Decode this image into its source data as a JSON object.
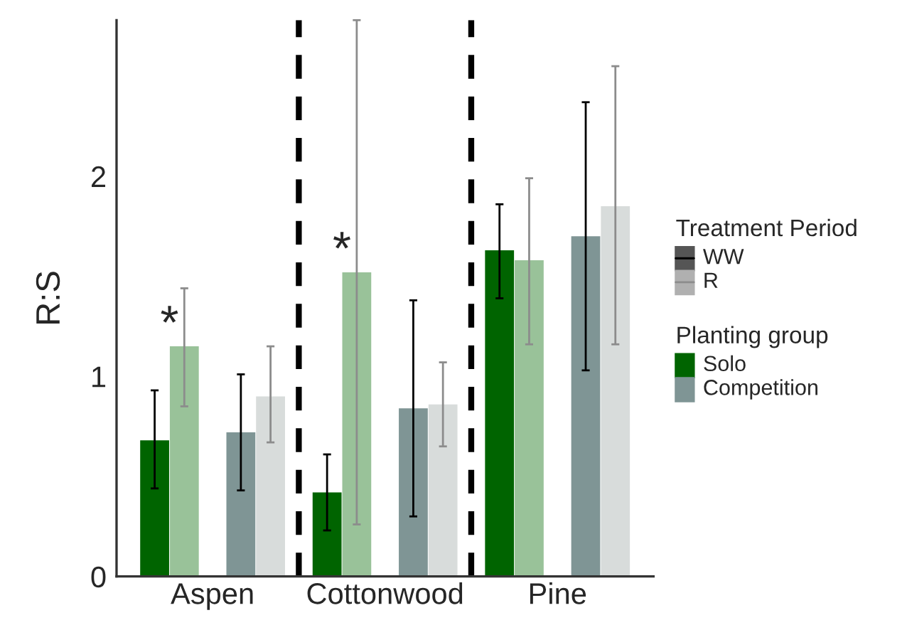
{
  "chart_data": {
    "type": "bar",
    "ylabel": "R:S",
    "categories": [
      "Aspen",
      "Cottonwood",
      "Pine"
    ],
    "series": [
      {
        "color": "#006400",
        "values": [
          0.68,
          0.42,
          1.63
        ],
        "errors": [
          [
            0.44,
            0.93
          ],
          [
            0.23,
            0.61
          ],
          [
            1.39,
            1.86
          ]
        ]
      },
      {
        "color": "#99c299",
        "values": [
          1.15,
          1.52,
          1.58
        ],
        "errors": [
          [
            0.85,
            1.44
          ],
          [
            0.26,
            2.78
          ],
          [
            1.16,
            1.99
          ]
        ]
      },
      {
        "color": "#7f9595",
        "values": [
          0.72,
          0.84,
          1.7
        ],
        "errors": [
          [
            0.43,
            1.01
          ],
          [
            0.3,
            1.38
          ],
          [
            1.03,
            2.37
          ]
        ]
      },
      {
        "color": "#d8dcdb",
        "values": [
          0.9,
          0.86,
          1.85
        ],
        "errors": [
          [
            0.67,
            1.15
          ],
          [
            0.65,
            1.07
          ],
          [
            1.16,
            2.55
          ]
        ]
      }
    ],
    "ylim": [
      0,
      2.78
    ],
    "yticks": [
      0,
      1,
      2
    ],
    "annotations": [
      "*",
      "*",
      "Treatment Period",
      "WW",
      "R",
      "Planting group",
      "Solo",
      "Competition"
    ],
    "grid": false
  }
}
